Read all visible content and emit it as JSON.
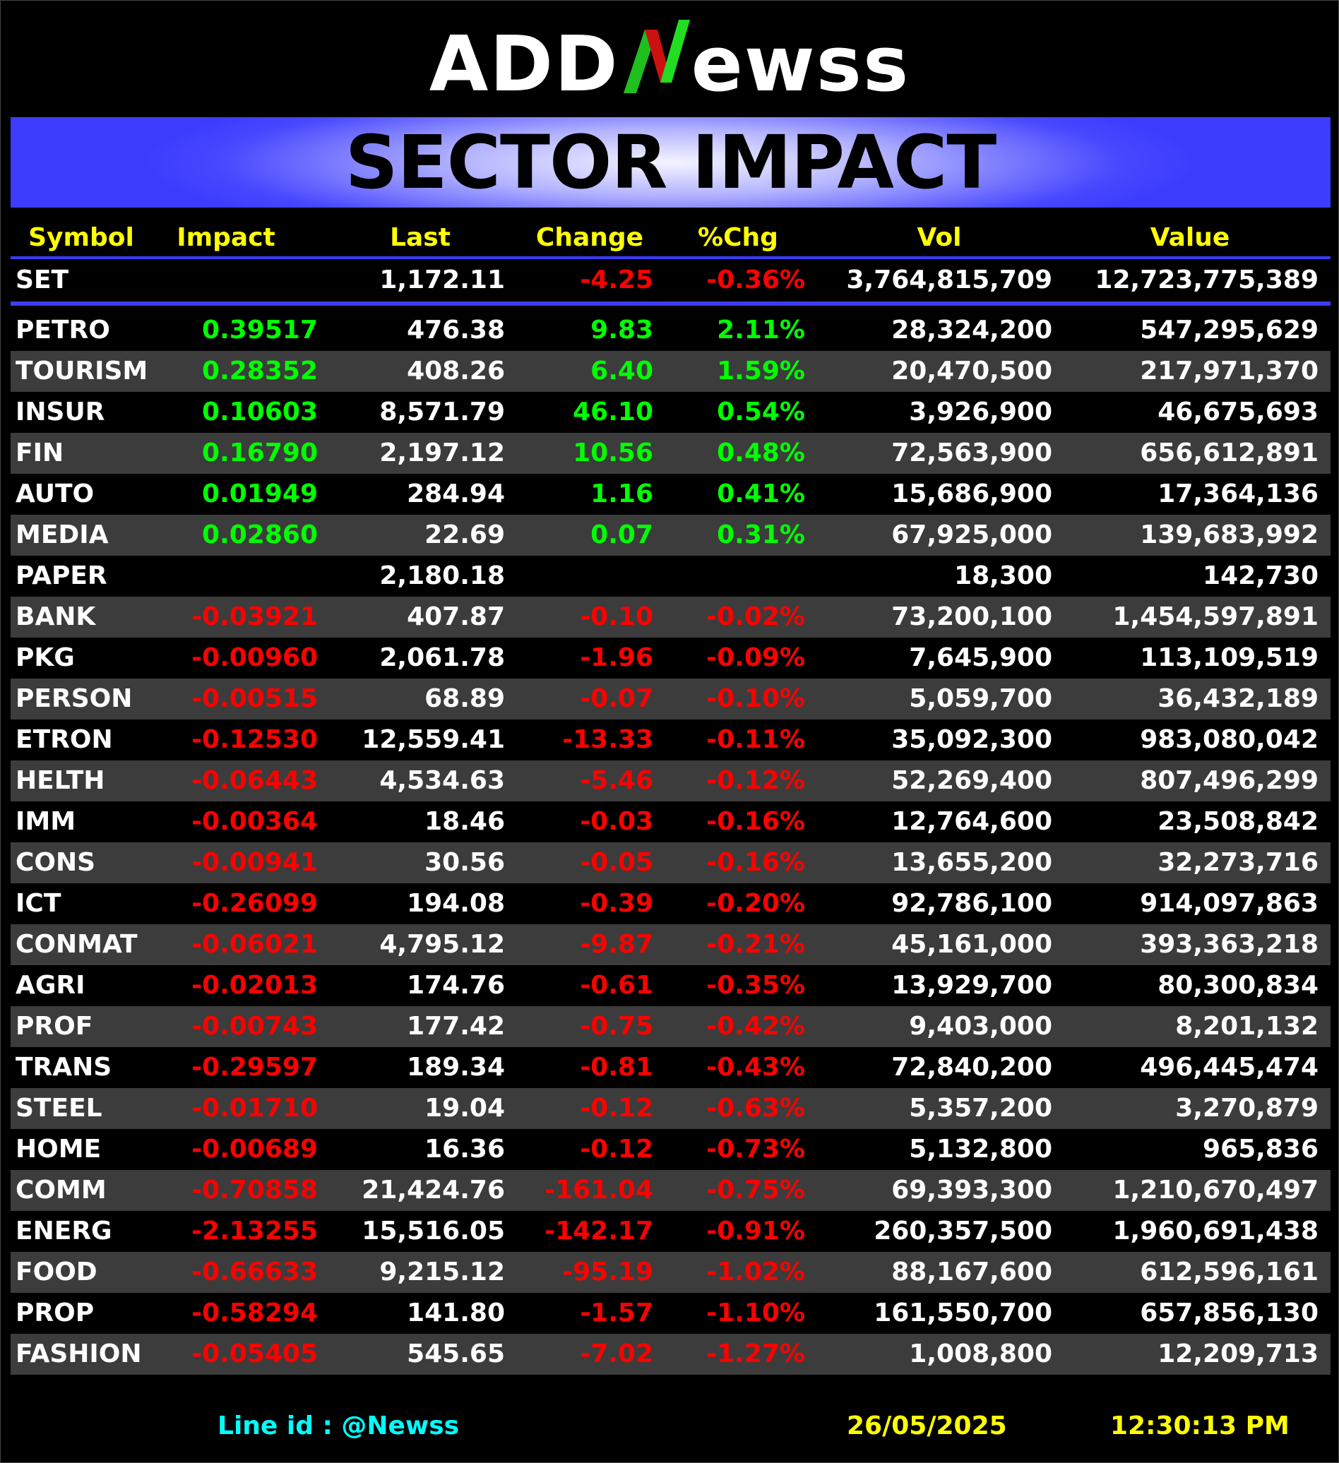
{
  "brand": {
    "logo_left": "ADD",
    "logo_right": "ewss",
    "logo_mark": "N",
    "colors": {
      "background": "#000000",
      "banner_blue": "#3c3cff",
      "header_yellow": "#ffff00",
      "positive": "#00ff00",
      "negative": "#ff0000",
      "footer_cyan": "#00ffff",
      "row_alt": "#3c3c3c"
    }
  },
  "banner": {
    "title": "SECTOR IMPACT"
  },
  "table": {
    "headers": {
      "symbol": "Symbol",
      "impact": "Impact",
      "last": "Last",
      "change": "Change",
      "pct": "%Chg",
      "vol": "Vol",
      "value": "Value"
    },
    "index": {
      "symbol": "SET",
      "impact": "",
      "last": "1,172.11",
      "change": "-4.25",
      "pct": "-0.36%",
      "vol": "3,764,815,709",
      "value": "12,723,775,389",
      "direction": "down"
    },
    "rows": [
      {
        "symbol": "PETRO",
        "impact": "0.39517",
        "last": "476.38",
        "change": "9.83",
        "pct": "2.11%",
        "vol": "28,324,200",
        "value": "547,295,629",
        "direction": "up"
      },
      {
        "symbol": "TOURISM",
        "impact": "0.28352",
        "last": "408.26",
        "change": "6.40",
        "pct": "1.59%",
        "vol": "20,470,500",
        "value": "217,971,370",
        "direction": "up"
      },
      {
        "symbol": "INSUR",
        "impact": "0.10603",
        "last": "8,571.79",
        "change": "46.10",
        "pct": "0.54%",
        "vol": "3,926,900",
        "value": "46,675,693",
        "direction": "up"
      },
      {
        "symbol": "FIN",
        "impact": "0.16790",
        "last": "2,197.12",
        "change": "10.56",
        "pct": "0.48%",
        "vol": "72,563,900",
        "value": "656,612,891",
        "direction": "up"
      },
      {
        "symbol": "AUTO",
        "impact": "0.01949",
        "last": "284.94",
        "change": "1.16",
        "pct": "0.41%",
        "vol": "15,686,900",
        "value": "17,364,136",
        "direction": "up"
      },
      {
        "symbol": "MEDIA",
        "impact": "0.02860",
        "last": "22.69",
        "change": "0.07",
        "pct": "0.31%",
        "vol": "67,925,000",
        "value": "139,683,992",
        "direction": "up"
      },
      {
        "symbol": "PAPER",
        "impact": "",
        "last": "2,180.18",
        "change": "",
        "pct": "",
        "vol": "18,300",
        "value": "142,730",
        "direction": "flat"
      },
      {
        "symbol": "BANK",
        "impact": "-0.03921",
        "last": "407.87",
        "change": "-0.10",
        "pct": "-0.02%",
        "vol": "73,200,100",
        "value": "1,454,597,891",
        "direction": "down"
      },
      {
        "symbol": "PKG",
        "impact": "-0.00960",
        "last": "2,061.78",
        "change": "-1.96",
        "pct": "-0.09%",
        "vol": "7,645,900",
        "value": "113,109,519",
        "direction": "down"
      },
      {
        "symbol": "PERSON",
        "impact": "-0.00515",
        "last": "68.89",
        "change": "-0.07",
        "pct": "-0.10%",
        "vol": "5,059,700",
        "value": "36,432,189",
        "direction": "down"
      },
      {
        "symbol": "ETRON",
        "impact": "-0.12530",
        "last": "12,559.41",
        "change": "-13.33",
        "pct": "-0.11%",
        "vol": "35,092,300",
        "value": "983,080,042",
        "direction": "down"
      },
      {
        "symbol": "HELTH",
        "impact": "-0.06443",
        "last": "4,534.63",
        "change": "-5.46",
        "pct": "-0.12%",
        "vol": "52,269,400",
        "value": "807,496,299",
        "direction": "down"
      },
      {
        "symbol": "IMM",
        "impact": "-0.00364",
        "last": "18.46",
        "change": "-0.03",
        "pct": "-0.16%",
        "vol": "12,764,600",
        "value": "23,508,842",
        "direction": "down"
      },
      {
        "symbol": "CONS",
        "impact": "-0.00941",
        "last": "30.56",
        "change": "-0.05",
        "pct": "-0.16%",
        "vol": "13,655,200",
        "value": "32,273,716",
        "direction": "down"
      },
      {
        "symbol": "ICT",
        "impact": "-0.26099",
        "last": "194.08",
        "change": "-0.39",
        "pct": "-0.20%",
        "vol": "92,786,100",
        "value": "914,097,863",
        "direction": "down"
      },
      {
        "symbol": "CONMAT",
        "impact": "-0.06021",
        "last": "4,795.12",
        "change": "-9.87",
        "pct": "-0.21%",
        "vol": "45,161,000",
        "value": "393,363,218",
        "direction": "down"
      },
      {
        "symbol": "AGRI",
        "impact": "-0.02013",
        "last": "174.76",
        "change": "-0.61",
        "pct": "-0.35%",
        "vol": "13,929,700",
        "value": "80,300,834",
        "direction": "down"
      },
      {
        "symbol": "PROF",
        "impact": "-0.00743",
        "last": "177.42",
        "change": "-0.75",
        "pct": "-0.42%",
        "vol": "9,403,000",
        "value": "8,201,132",
        "direction": "down"
      },
      {
        "symbol": "TRANS",
        "impact": "-0.29597",
        "last": "189.34",
        "change": "-0.81",
        "pct": "-0.43%",
        "vol": "72,840,200",
        "value": "496,445,474",
        "direction": "down"
      },
      {
        "symbol": "STEEL",
        "impact": "-0.01710",
        "last": "19.04",
        "change": "-0.12",
        "pct": "-0.63%",
        "vol": "5,357,200",
        "value": "3,270,879",
        "direction": "down"
      },
      {
        "symbol": "HOME",
        "impact": "-0.00689",
        "last": "16.36",
        "change": "-0.12",
        "pct": "-0.73%",
        "vol": "5,132,800",
        "value": "965,836",
        "direction": "down"
      },
      {
        "symbol": "COMM",
        "impact": "-0.70858",
        "last": "21,424.76",
        "change": "-161.04",
        "pct": "-0.75%",
        "vol": "69,393,300",
        "value": "1,210,670,497",
        "direction": "down"
      },
      {
        "symbol": "ENERG",
        "impact": "-2.13255",
        "last": "15,516.05",
        "change": "-142.17",
        "pct": "-0.91%",
        "vol": "260,357,500",
        "value": "1,960,691,438",
        "direction": "down"
      },
      {
        "symbol": "FOOD",
        "impact": "-0.66633",
        "last": "9,215.12",
        "change": "-95.19",
        "pct": "-1.02%",
        "vol": "88,167,600",
        "value": "612,596,161",
        "direction": "down"
      },
      {
        "symbol": "PROP",
        "impact": "-0.58294",
        "last": "141.80",
        "change": "-1.57",
        "pct": "-1.10%",
        "vol": "161,550,700",
        "value": "657,856,130",
        "direction": "down"
      },
      {
        "symbol": "FASHION",
        "impact": "-0.05405",
        "last": "545.65",
        "change": "-7.02",
        "pct": "-1.27%",
        "vol": "1,008,800",
        "value": "12,209,713",
        "direction": "down"
      }
    ]
  },
  "footer": {
    "line_id": "Line id  : @Newss",
    "date": "26/05/2025",
    "time": "12:30:13 PM"
  }
}
